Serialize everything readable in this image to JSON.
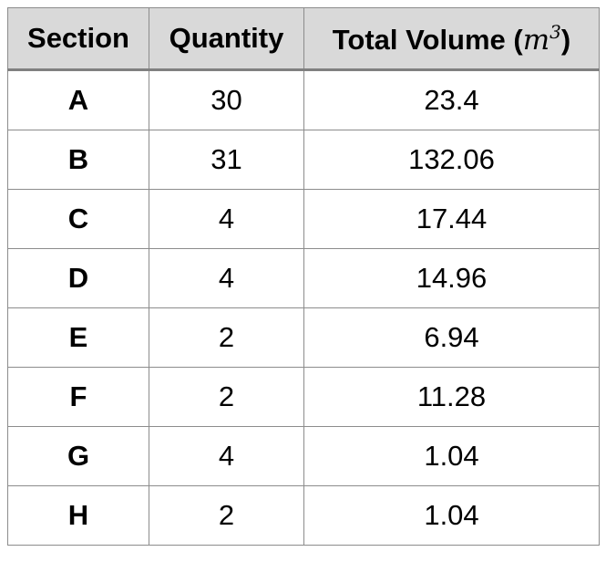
{
  "table": {
    "headers": {
      "section": "Section",
      "quantity": "Quantity",
      "volume_prefix": "Total Volume",
      "volume_open": "(",
      "volume_var": "m",
      "volume_exp": "3",
      "volume_close": ")"
    },
    "rows": [
      {
        "section": "A",
        "quantity": "30",
        "volume": "23.4"
      },
      {
        "section": "B",
        "quantity": "31",
        "volume": "132.06"
      },
      {
        "section": "C",
        "quantity": "4",
        "volume": "17.44"
      },
      {
        "section": "D",
        "quantity": "4",
        "volume": "14.96"
      },
      {
        "section": "E",
        "quantity": "2",
        "volume": "6.94"
      },
      {
        "section": "F",
        "quantity": "2",
        "volume": "11.28"
      },
      {
        "section": "G",
        "quantity": "4",
        "volume": "1.04"
      },
      {
        "section": "H",
        "quantity": "2",
        "volume": "1.04"
      }
    ]
  }
}
